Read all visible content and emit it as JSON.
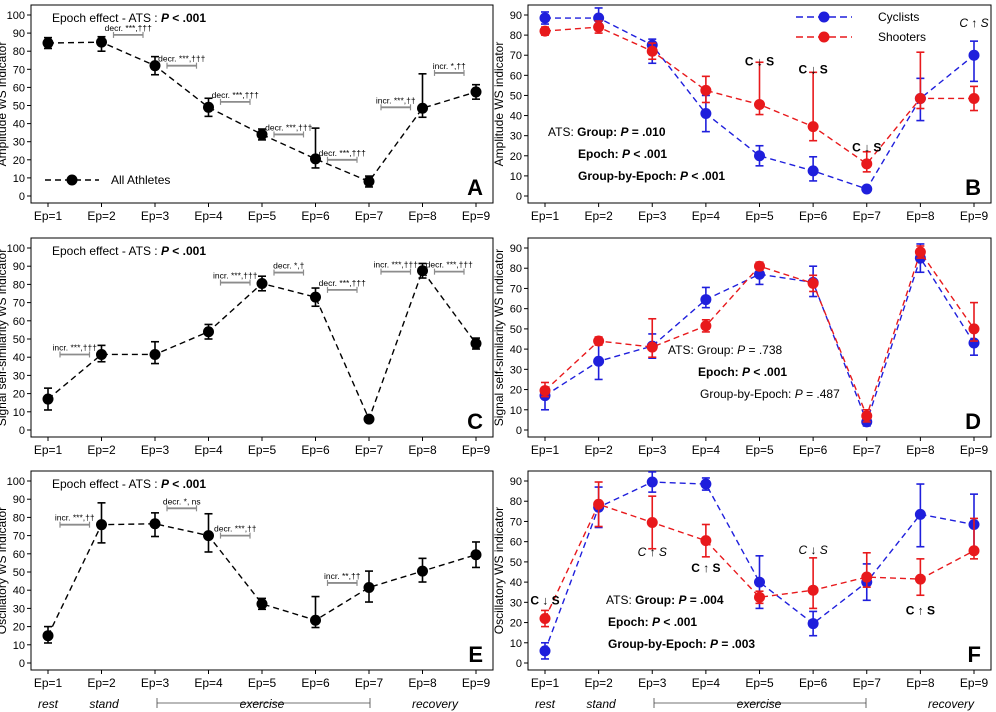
{
  "x_categories": [
    "Ep=1",
    "Ep=2",
    "Ep=3",
    "Ep=4",
    "Ep=5",
    "Ep=6",
    "Ep=7",
    "Ep=8",
    "Ep=9"
  ],
  "phase_labels": {
    "rest": "rest",
    "stand": "stand",
    "exercise": "exercise",
    "recovery": "recovery"
  },
  "colors": {
    "all": "#000000",
    "cyclists": "#1f1fdc",
    "shooters": "#e8191c",
    "bracket": "#8c8c8c"
  },
  "legend": {
    "all": "All Athletes",
    "cyclists": "Cyclists",
    "shooters": "Shooters"
  },
  "chart_data": [
    {
      "panel": "A",
      "type": "line",
      "ylabel": "Amplitude WS indicator",
      "ylim": [
        0,
        100
      ],
      "yticks": [
        0,
        10,
        20,
        30,
        40,
        50,
        60,
        70,
        80,
        90,
        100
      ],
      "title_parts": [
        {
          "t": "Epoch effect - ATS : ",
          "b": false
        },
        {
          "t": "P",
          "b": true,
          "i": true
        },
        {
          "t": "  < .001",
          "b": true
        }
      ],
      "legend_label": "All Athletes",
      "series": [
        {
          "name": "All Athletes",
          "color": "#000000",
          "values": [
            84.5,
            85,
            72,
            49,
            34,
            20.5,
            8,
            48.5,
            57.5
          ],
          "err_low": [
            3,
            5,
            5,
            5,
            3,
            5,
            3,
            5,
            4
          ],
          "err_high": [
            3,
            3,
            5,
            5,
            3,
            17,
            3,
            19,
            4
          ]
        }
      ],
      "annotations": [
        {
          "text": "decr. ***,†††",
          "from": 2,
          "to": 3,
          "y": 89
        },
        {
          "text": "decr. ***,†††",
          "from": 3,
          "to": 4,
          "y": 72
        },
        {
          "text": "decr. ***,†††",
          "from": 4,
          "to": 5,
          "y": 52
        },
        {
          "text": "decr. ***,†††",
          "from": 5,
          "to": 6,
          "y": 34
        },
        {
          "text": "decr. ***,†††",
          "from": 6,
          "to": 7,
          "y": 20
        },
        {
          "text": "incr. ***,††",
          "from": 7,
          "to": 8,
          "y": 49
        },
        {
          "text": "incr. *,††",
          "from": 8,
          "to": 9,
          "y": 68
        }
      ],
      "stats": [],
      "comparisons": []
    },
    {
      "panel": "B",
      "type": "line",
      "ylabel": "Amplitude WS indicator",
      "ylim": [
        0,
        90
      ],
      "yticks": [
        0,
        10,
        20,
        30,
        40,
        50,
        60,
        70,
        80,
        90
      ],
      "title_parts": [],
      "legend_label": "",
      "series": [
        {
          "name": "Cyclists",
          "color": "#1f1fdc",
          "values": [
            88.5,
            88.5,
            75,
            41,
            20,
            12.5,
            3.5,
            48.5,
            70
          ],
          "err_low": [
            3,
            3,
            9,
            9,
            5,
            5,
            1,
            11,
            13
          ],
          "err_high": [
            3,
            5,
            3,
            9,
            5,
            7,
            1,
            10,
            7
          ]
        },
        {
          "name": "Shooters",
          "color": "#e8191c",
          "values": [
            82,
            84,
            72,
            52.5,
            45.5,
            34.5,
            16,
            48.5,
            48.5
          ],
          "err_low": [
            2,
            3,
            4,
            6,
            5,
            7,
            4,
            5,
            6
          ],
          "err_high": [
            2,
            3,
            4,
            7,
            21,
            27,
            6,
            23,
            6
          ]
        }
      ],
      "annotations": [],
      "stats": [
        [
          {
            "t": "ATS: ",
            "b": false
          },
          {
            "t": "Group: ",
            "b": true
          },
          {
            "t": "P",
            "b": true,
            "i": true
          },
          {
            "t": " = .010",
            "b": true
          }
        ],
        [
          {
            "t": "Epoch: ",
            "b": true
          },
          {
            "t": "P",
            "b": true,
            "i": true
          },
          {
            "t": " < .001",
            "b": true
          }
        ],
        [
          {
            "t": "Group-by-Epoch: ",
            "b": true
          },
          {
            "t": "P",
            "b": true,
            "i": true
          },
          {
            "t": " < .001",
            "b": true
          }
        ]
      ],
      "comparisons": [
        {
          "text": "C ↓ S",
          "ep": 5,
          "y": 67,
          "b": true,
          "i": false
        },
        {
          "text": "C ↓ S",
          "ep": 6,
          "y": 63,
          "b": true,
          "i": false
        },
        {
          "text": "C ↓ S",
          "ep": 7,
          "y": 24,
          "b": true,
          "i": false
        },
        {
          "text": "C ↑ S",
          "ep": 9,
          "y": 86,
          "b": false,
          "i": true
        }
      ]
    },
    {
      "panel": "C",
      "type": "line",
      "ylabel": "Signal self-similarity WS indicator",
      "ylim": [
        0,
        100
      ],
      "yticks": [
        0,
        10,
        20,
        30,
        40,
        50,
        60,
        70,
        80,
        90,
        100
      ],
      "title_parts": [
        {
          "t": "Epoch effect - ATS : ",
          "b": false
        },
        {
          "t": "P",
          "b": true,
          "i": true
        },
        {
          "t": "  < .001",
          "b": true
        }
      ],
      "legend_label": "",
      "series": [
        {
          "name": "All Athletes",
          "color": "#000000",
          "values": [
            17,
            41.5,
            41.5,
            54,
            80.5,
            73,
            6,
            87.5,
            47.5
          ],
          "err_low": [
            6,
            4,
            5,
            4,
            4,
            5,
            1,
            4,
            3
          ],
          "err_high": [
            6,
            5,
            7,
            4,
            4,
            5,
            1,
            4,
            3
          ]
        }
      ],
      "annotations": [
        {
          "text": "incr. ***,†††",
          "from": 1,
          "to": 2,
          "y": 41.5
        },
        {
          "text": "incr. ***,†††",
          "from": 4,
          "to": 5,
          "y": 81
        },
        {
          "text": "decr. *,†",
          "from": 5,
          "to": 6,
          "y": 86.5
        },
        {
          "text": "decr. ***,†††",
          "from": 6,
          "to": 7,
          "y": 77
        },
        {
          "text": "incr. ***,†††",
          "from": 7,
          "to": 8,
          "y": 87
        },
        {
          "text": "decr. ***,†††",
          "from": 8,
          "to": 9,
          "y": 87
        }
      ],
      "stats": [],
      "comparisons": []
    },
    {
      "panel": "D",
      "type": "line",
      "ylabel": "Signal self-similarity  WS indicator",
      "ylim": [
        0,
        90
      ],
      "yticks": [
        0,
        10,
        20,
        30,
        40,
        50,
        60,
        70,
        80,
        90
      ],
      "title_parts": [],
      "legend_label": "",
      "series": [
        {
          "name": "Cyclists",
          "color": "#1f1fdc",
          "values": [
            17,
            34,
            41.5,
            64.5,
            77,
            73,
            4,
            85,
            43
          ],
          "err_low": [
            7,
            9,
            6,
            4,
            5,
            7,
            2,
            7,
            6
          ],
          "err_high": [
            4,
            9,
            6,
            6,
            5,
            8,
            2,
            7,
            6
          ]
        },
        {
          "name": "Shooters",
          "color": "#e8191c",
          "values": [
            19.5,
            44,
            41,
            51.5,
            81,
            72.5,
            7,
            88,
            50
          ],
          "err_low": [
            3,
            2,
            5,
            3,
            2,
            4,
            3,
            3,
            6
          ],
          "err_high": [
            4,
            2,
            14,
            3,
            2,
            4,
            3,
            3,
            13
          ]
        }
      ],
      "annotations": [],
      "stats": [
        [
          {
            "t": "ATS: Group: ",
            "b": false
          },
          {
            "t": "P",
            "b": false,
            "i": true
          },
          {
            "t": " = .738",
            "b": false
          }
        ],
        [
          {
            "t": "Epoch: ",
            "b": true
          },
          {
            "t": "P",
            "b": true,
            "i": true
          },
          {
            "t": "  < .001",
            "b": true
          }
        ],
        [
          {
            "t": "Group-by-Epoch: ",
            "b": false
          },
          {
            "t": "P",
            "b": false,
            "i": true
          },
          {
            "t": " = .487",
            "b": false
          }
        ]
      ],
      "comparisons": []
    },
    {
      "panel": "E",
      "type": "line",
      "ylabel": "Oscillatory WS indicator",
      "ylim": [
        0,
        100
      ],
      "yticks": [
        0,
        10,
        20,
        30,
        40,
        50,
        60,
        70,
        80,
        90,
        100
      ],
      "title_parts": [
        {
          "t": "Epoch effect - ATS : ",
          "b": false
        },
        {
          "t": "P",
          "b": true,
          "i": true
        },
        {
          "t": "  < .001",
          "b": true
        }
      ],
      "legend_label": "",
      "series": [
        {
          "name": "All Athletes",
          "color": "#000000",
          "values": [
            15,
            76,
            76.5,
            70,
            32.5,
            23.5,
            41.5,
            50.5,
            59.5
          ],
          "err_low": [
            4,
            10,
            7,
            9,
            3,
            4,
            8,
            6,
            7
          ],
          "err_high": [
            5,
            12,
            6,
            12,
            3,
            13,
            9,
            7,
            7
          ]
        }
      ],
      "annotations": [
        {
          "text": "incr. ***,††",
          "from": 1,
          "to": 2,
          "y": 76
        },
        {
          "text": "decr. *, ns",
          "from": 3,
          "to": 4,
          "y": 85
        },
        {
          "text": "decr. ***,††",
          "from": 4,
          "to": 5,
          "y": 70
        },
        {
          "text": "incr. **,††",
          "from": 6,
          "to": 7,
          "y": 44
        }
      ],
      "stats": [],
      "comparisons": []
    },
    {
      "panel": "F",
      "type": "line",
      "ylabel": "Oscillatory WS indicator",
      "ylim": [
        0,
        90
      ],
      "yticks": [
        0,
        10,
        20,
        30,
        40,
        50,
        60,
        70,
        80,
        90
      ],
      "title_parts": [],
      "legend_label": "",
      "series": [
        {
          "name": "Cyclists",
          "color": "#1f1fdc",
          "values": [
            6,
            77,
            89.5,
            88.5,
            40,
            19.5,
            40,
            73.5,
            68.5
          ],
          "err_low": [
            4,
            10,
            5,
            3,
            13,
            6,
            9,
            16,
            13
          ],
          "err_high": [
            4,
            10,
            5,
            3,
            13,
            6,
            9,
            15,
            15
          ]
        },
        {
          "name": "Shooters",
          "color": "#e8191c",
          "values": [
            22,
            78.5,
            69.5,
            60.5,
            32.5,
            36,
            42.5,
            41.5,
            55.5
          ],
          "err_low": [
            4,
            11,
            13,
            8,
            3,
            9,
            5,
            8,
            4
          ],
          "err_high": [
            4,
            11,
            13,
            8,
            3,
            16,
            12,
            10,
            16
          ]
        }
      ],
      "annotations": [],
      "stats": [
        [
          {
            "t": "ATS: ",
            "b": false
          },
          {
            "t": "Group: ",
            "b": true
          },
          {
            "t": "P",
            "b": true,
            "i": true
          },
          {
            "t": " = .004",
            "b": true
          }
        ],
        [
          {
            "t": "Epoch: ",
            "b": true
          },
          {
            "t": "P",
            "b": true,
            "i": true
          },
          {
            "t": " < .001",
            "b": true
          }
        ],
        [
          {
            "t": "Group-by-Epoch: ",
            "b": true
          },
          {
            "t": "P",
            "b": true,
            "i": true
          },
          {
            "t": " = .003",
            "b": true
          }
        ]
      ],
      "comparisons": [
        {
          "text": "C ↓ S",
          "ep": 1,
          "y": 31,
          "b": true,
          "i": false
        },
        {
          "text": "C ↑ S",
          "ep": 3,
          "y": 55,
          "b": false,
          "i": true
        },
        {
          "text": "C ↑ S",
          "ep": 4,
          "y": 47,
          "b": true,
          "i": false
        },
        {
          "text": "C ↓ S",
          "ep": 6,
          "y": 56,
          "b": false,
          "i": true
        },
        {
          "text": "C ↑ S",
          "ep": 8,
          "y": 26,
          "b": true,
          "i": false
        }
      ]
    }
  ]
}
